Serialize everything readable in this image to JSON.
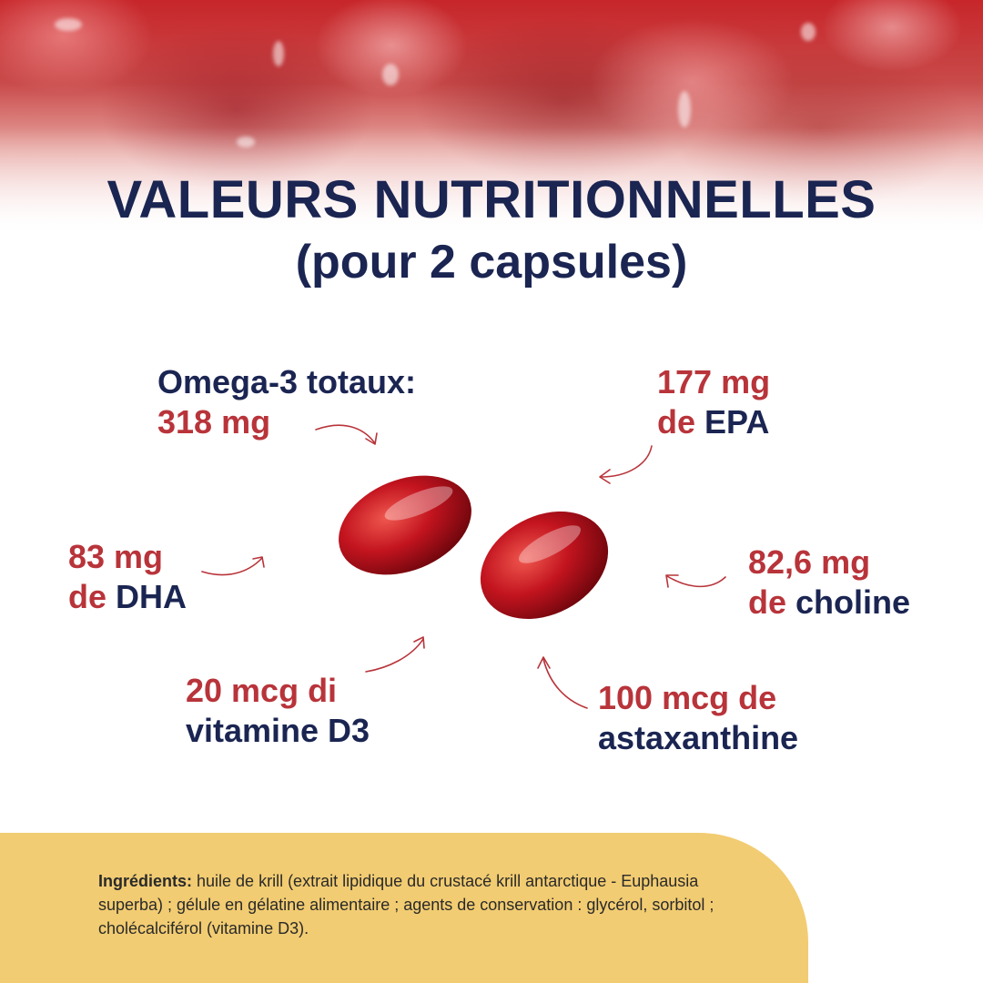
{
  "title": {
    "line1": "VALEURS NUTRITIONNELLES",
    "line2": "(pour 2 capsules)"
  },
  "nutrients": {
    "omega3": {
      "label": "Omega-3 totaux:",
      "value": "318 mg"
    },
    "epa": {
      "value": "177 mg",
      "prefix": "de",
      "name": "EPA"
    },
    "dha": {
      "value": "83 mg",
      "prefix": "de",
      "name": "DHA"
    },
    "choline": {
      "value": "82,6 mg",
      "prefix": "de",
      "name": "choline"
    },
    "vitamin_d3": {
      "value": "20 mcg di",
      "name": "vitamine D3"
    },
    "astaxanthin": {
      "value": "100 mcg de",
      "name": "astaxanthine"
    }
  },
  "ingredients": {
    "heading": "Ingrédients:",
    "text": " huile de krill (extrait lipidique du crustacé krill antarctique - Euphausia superba) ; gélule en gélatine alimentaire ; agents de conservation : glycérol, sorbitol ; cholécalciférol (vitamine D3)."
  },
  "colors": {
    "navy": "#1b2552",
    "red": "#b8343a",
    "panel": "#f2cc72"
  }
}
